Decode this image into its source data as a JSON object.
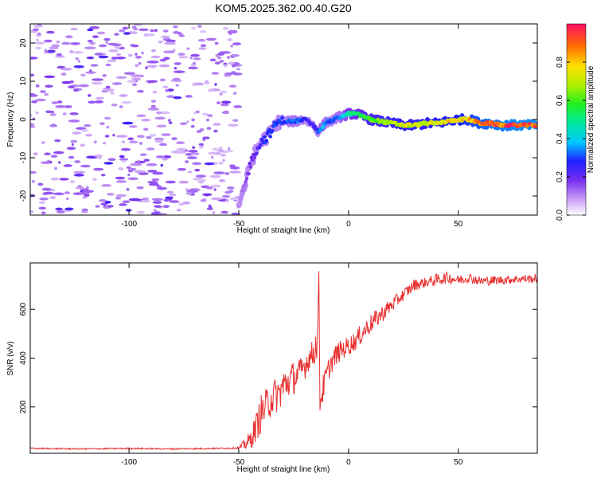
{
  "figure_title": "KOM5.2025.362.00.40.G20",
  "chart_data": [
    {
      "type": "heatmap",
      "xlabel": "Height of straight line (km)",
      "ylabel": "Frequency (Hz)",
      "xlim": [
        -145,
        86
      ],
      "ylim": [
        -25,
        25
      ],
      "xticks": [
        "-100",
        "-50",
        "0",
        "50"
      ],
      "xtick_values": [
        -100,
        -50,
        0,
        50
      ],
      "yticks": [
        "-20",
        "-10",
        "0",
        "10",
        "20"
      ],
      "ytick_values": [
        -20,
        -10,
        0,
        10,
        20
      ],
      "colorbar": {
        "label": "Normalized spectral amplitude",
        "range": [
          0,
          1
        ],
        "ticks": [
          "0.0",
          "0.2",
          "0.4",
          "0.6",
          "0.8"
        ],
        "tick_values": [
          0.0,
          0.2,
          0.4,
          0.6,
          0.8
        ]
      },
      "signal_track": {
        "x": [
          -50,
          -47,
          -45,
          -42,
          -40,
          -38,
          -35,
          -33,
          -30,
          -25,
          -20,
          -17,
          -14,
          -12,
          -10,
          -8,
          -5,
          -2,
          0,
          3,
          6,
          10,
          15,
          20,
          25,
          30,
          35,
          40,
          45,
          50,
          55,
          60,
          65,
          70,
          75,
          80,
          86
        ],
        "freq": [
          -22,
          -17,
          -12,
          -8,
          -6,
          -5,
          -3,
          -1,
          -0.5,
          -0.5,
          0,
          -1,
          -3,
          -2,
          -0.5,
          -0.5,
          0.5,
          1,
          1.5,
          1.5,
          1,
          0,
          -0.5,
          -1,
          -1.5,
          -1.5,
          -1,
          -1,
          -0.5,
          0,
          0,
          -1,
          -1,
          -1.5,
          -1.5,
          -1.5,
          -1.5
        ],
        "amplitude": [
          0.1,
          0.15,
          0.2,
          0.2,
          0.25,
          0.3,
          0.3,
          0.3,
          0.3,
          0.35,
          0.3,
          0.25,
          0.3,
          0.4,
          0.35,
          0.3,
          0.35,
          0.4,
          0.5,
          0.55,
          0.6,
          0.65,
          0.7,
          0.72,
          0.75,
          0.75,
          0.75,
          0.78,
          0.8,
          0.8,
          0.85,
          0.9,
          0.95,
          0.95,
          0.98,
          0.98,
          0.98
        ]
      },
      "noise_region": {
        "x": [
          -145,
          -50
        ],
        "amplitude": [
          0.05,
          0.25
        ]
      }
    },
    {
      "type": "line",
      "xlabel": "Height of straight line (km)",
      "ylabel": "SNR (v/v)",
      "xlim": [
        -145,
        86
      ],
      "ylim": [
        10,
        790
      ],
      "xticks": [
        "-100",
        "-50",
        "0",
        "50"
      ],
      "xtick_values": [
        -100,
        -50,
        0,
        50
      ],
      "yticks": [
        "200",
        "400",
        "600"
      ],
      "ytick_values": [
        200,
        400,
        600
      ],
      "series": [
        {
          "color": "#e83030",
          "x": [
            -145,
            -120,
            -100,
            -80,
            -60,
            -50,
            -45,
            -42,
            -40,
            -38,
            -35,
            -32,
            -30,
            -28,
            -25,
            -22,
            -20,
            -18,
            -16,
            -15,
            -14,
            -13.5,
            -13,
            -12,
            -10,
            -8,
            -5,
            -2,
            0,
            3,
            6,
            10,
            15,
            20,
            25,
            30,
            35,
            40,
            45,
            50,
            55,
            60,
            70,
            80,
            86
          ],
          "y": [
            30,
            28,
            30,
            28,
            30,
            32,
            60,
            120,
            170,
            200,
            240,
            250,
            280,
            300,
            320,
            340,
            370,
            400,
            420,
            450,
            480,
            760,
            220,
            260,
            330,
            380,
            420,
            440,
            450,
            470,
            500,
            540,
            580,
            620,
            660,
            700,
            710,
            720,
            730,
            720,
            730,
            715,
            720,
            725,
            725
          ],
          "jitter": [
            3,
            3,
            3,
            3,
            3,
            4,
            40,
            60,
            80,
            70,
            80,
            70,
            80,
            70,
            70,
            60,
            60,
            50,
            60,
            70,
            70,
            10,
            60,
            60,
            50,
            45,
            45,
            40,
            40,
            40,
            40,
            40,
            35,
            30,
            25,
            25,
            20,
            25,
            25,
            20,
            20,
            20,
            18,
            18,
            18
          ]
        }
      ]
    }
  ]
}
